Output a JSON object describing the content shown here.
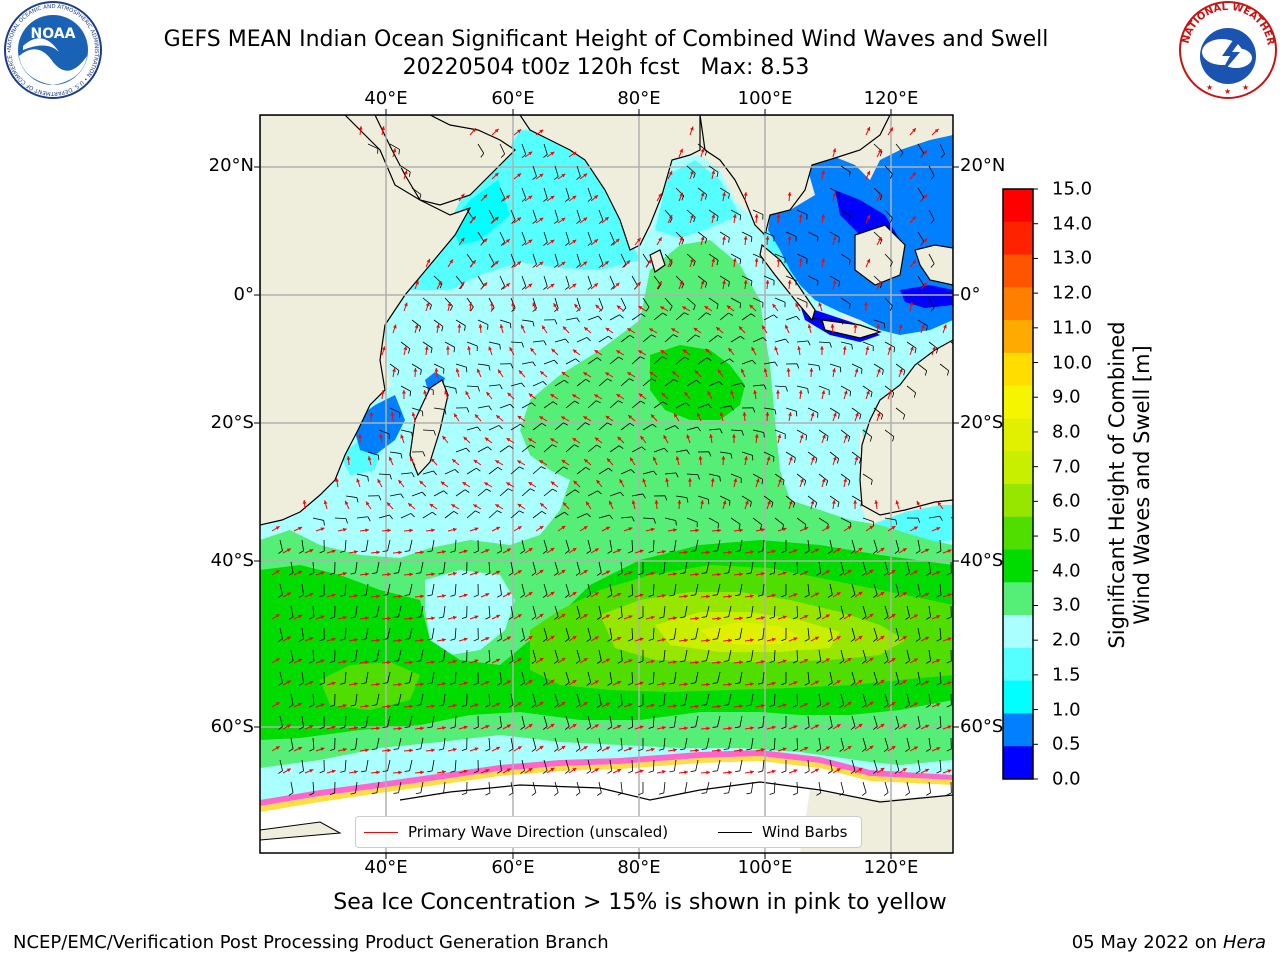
{
  "title": {
    "line1": "GEFS MEAN Indian Ocean Significant Height of Combined Wind Waves and Swell",
    "line2": "20220504 t00z 120h fcst   Max: 8.53"
  },
  "axes": {
    "lon_labels": [
      "40°E",
      "60°E",
      "80°E",
      "100°E",
      "120°E"
    ],
    "lat_labels": [
      "20°N",
      "0°",
      "20°S",
      "40°S",
      "60°S"
    ]
  },
  "colorbar": {
    "title_line1": "Significant Height of Combined",
    "title_line2": "Wind Waves and Swell [m]",
    "ticks": [
      "15.0",
      "14.0",
      "13.0",
      "12.0",
      "11.0",
      "10.0",
      "9.0",
      "8.0",
      "7.0",
      "6.0",
      "5.0",
      "4.0",
      "3.0",
      "2.0",
      "1.5",
      "1.0",
      "0.5",
      "0.0"
    ],
    "colors": [
      "#ff0000",
      "#ff2200",
      "#ff5500",
      "#ff8000",
      "#ffaa00",
      "#ffdd00",
      "#f5f500",
      "#e1f000",
      "#c8ee00",
      "#96e600",
      "#50de00",
      "#00dc00",
      "#55ee77",
      "#aaffff",
      "#55ffff",
      "#00ffff",
      "#0080ff",
      "#0000ff"
    ]
  },
  "legend": {
    "wave_label": "Primary Wave Direction (unscaled)",
    "wind_label": "Wind Barbs",
    "wave_color": "#ff0000",
    "wind_color": "#000000"
  },
  "caption": "Sea Ice Concentration > 15% is shown in pink to yellow",
  "footer": {
    "left": "NCEP/EMC/Verification Post Processing Product Generation Branch",
    "date": "05 May 2022 on",
    "machine": "Hera"
  },
  "logos": {
    "noaa_text": "NOAA",
    "noaa_ring": "NATIONAL OCEANIC AND ATMOSPHERIC ADMINISTRATION • U.S. DEPARTMENT OF COMMERCE •",
    "nws_ring": "NATIONAL WEATHER SERVICE"
  }
}
